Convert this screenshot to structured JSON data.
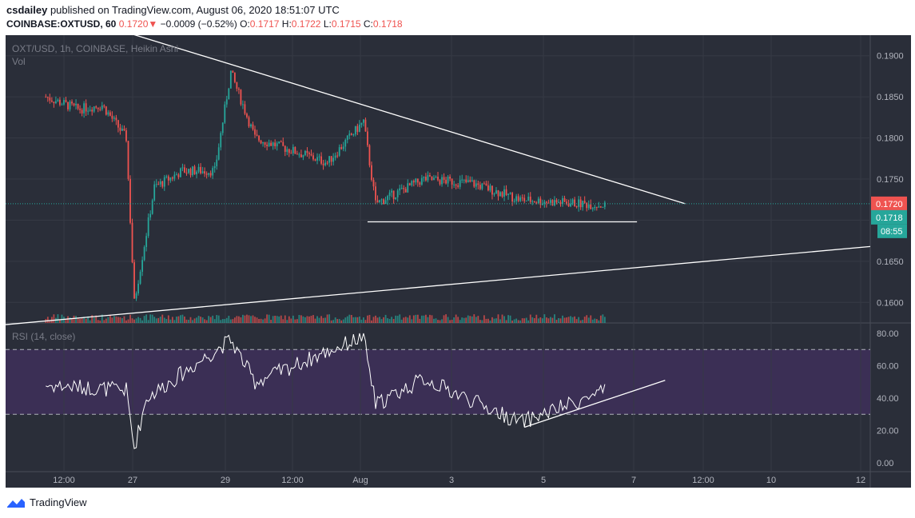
{
  "header": {
    "author": "csdailey",
    "published": "published on TradingView.com, August 06, 2020 18:51:07 UTC",
    "symbol": "COINBASE:OXTUSD, 60",
    "last": "0.1720",
    "change": "−0.0009 (−0.52%)",
    "o_label": "O:",
    "o": "0.1717",
    "h_label": "H:",
    "h": "0.1722",
    "l_label": "L:",
    "l": "0.1715",
    "c_label": "C:",
    "c": "0.1718"
  },
  "footer": {
    "brand": "TradingView"
  },
  "colors": {
    "background": "#2a2e39",
    "bull": "#26a69a",
    "bear": "#ef5350",
    "rsi_band": "#3b2f55",
    "line": "#ffffff"
  },
  "chart_data": [
    {
      "type": "candlestick",
      "title": "OXT/USD, 1h, COINBASE, Heikin Ashi",
      "subtitle": "Vol",
      "ylim": [
        0.1575,
        0.1925
      ],
      "y_ticks": [
        "0.1900",
        "0.1850",
        "0.1800",
        "0.1750",
        "0.1700",
        "0.1650",
        "0.1600"
      ],
      "x_ticks": [
        "12:00",
        "27",
        "29",
        "12:00",
        "Aug",
        "3",
        "5",
        "7",
        "12:00",
        "10",
        "12"
      ],
      "price_labels": {
        "last": "0.1720",
        "close": "0.1718",
        "countdown": "08:55"
      },
      "approx_path": [
        {
          "x": "Jul 26 04:00",
          "y": 0.185
        },
        {
          "x": "Jul 26 20:00",
          "y": 0.1835
        },
        {
          "x": "Jul 27 08:00",
          "y": 0.184
        },
        {
          "x": "Jul 27 20:00",
          "y": 0.18
        },
        {
          "x": "Jul 28 00:00",
          "y": 0.16
        },
        {
          "x": "Jul 28 10:00",
          "y": 0.174
        },
        {
          "x": "Jul 29 00:00",
          "y": 0.176
        },
        {
          "x": "Jul 29 16:00",
          "y": 0.176
        },
        {
          "x": "Jul 30 00:00",
          "y": 0.188
        },
        {
          "x": "Jul 30 12:00",
          "y": 0.18
        },
        {
          "x": "Aug 01 00:00",
          "y": 0.177
        },
        {
          "x": "Aug 01 18:00",
          "y": 0.182
        },
        {
          "x": "Aug 02 00:00",
          "y": 0.172
        },
        {
          "x": "Aug 03 00:00",
          "y": 0.175
        },
        {
          "x": "Aug 04 00:00",
          "y": 0.1745
        },
        {
          "x": "Aug 05 00:00",
          "y": 0.1725
        },
        {
          "x": "Aug 06 18:00",
          "y": 0.1718
        }
      ],
      "trendlines": [
        {
          "from": {
            "x": "Jul 27 18:00",
            "y": 0.193
          },
          "to": {
            "x": "Aug 08 10:00",
            "y": 0.172
          }
        },
        {
          "from": {
            "x": "Aug 01 20:00",
            "y": 0.1698
          },
          "to": {
            "x": "Aug 07 10:00",
            "y": 0.1698
          }
        },
        {
          "from": {
            "x": "Jul 25 08:00",
            "y": 0.1573
          },
          "to": {
            "x": "Aug 12 06:00",
            "y": 0.1668
          }
        }
      ]
    },
    {
      "type": "line",
      "title": "RSI (14, close)",
      "ylim": [
        0,
        80
      ],
      "y_ticks": [
        "80.00",
        "60.00",
        "40.00",
        "20.00",
        "0.00"
      ],
      "bands": [
        30,
        70
      ],
      "approx_path": [
        {
          "x": "Jul 26 04:00",
          "y": 48
        },
        {
          "x": "Jul 27 20:00",
          "y": 45
        },
        {
          "x": "Jul 28 00:00",
          "y": 9
        },
        {
          "x": "Jul 28 06:00",
          "y": 40
        },
        {
          "x": "Jul 30 00:00",
          "y": 76
        },
        {
          "x": "Jul 30 12:00",
          "y": 50
        },
        {
          "x": "Aug 01 18:00",
          "y": 78
        },
        {
          "x": "Aug 02 00:00",
          "y": 36
        },
        {
          "x": "Aug 03 00:00",
          "y": 52
        },
        {
          "x": "Aug 05 00:00",
          "y": 25
        },
        {
          "x": "Aug 06 18:00",
          "y": 44
        }
      ],
      "trendlines": [
        {
          "from": {
            "x": "Aug 05 02:00",
            "y": 22
          },
          "to": {
            "x": "Aug 08 00:00",
            "y": 51
          }
        }
      ]
    }
  ]
}
